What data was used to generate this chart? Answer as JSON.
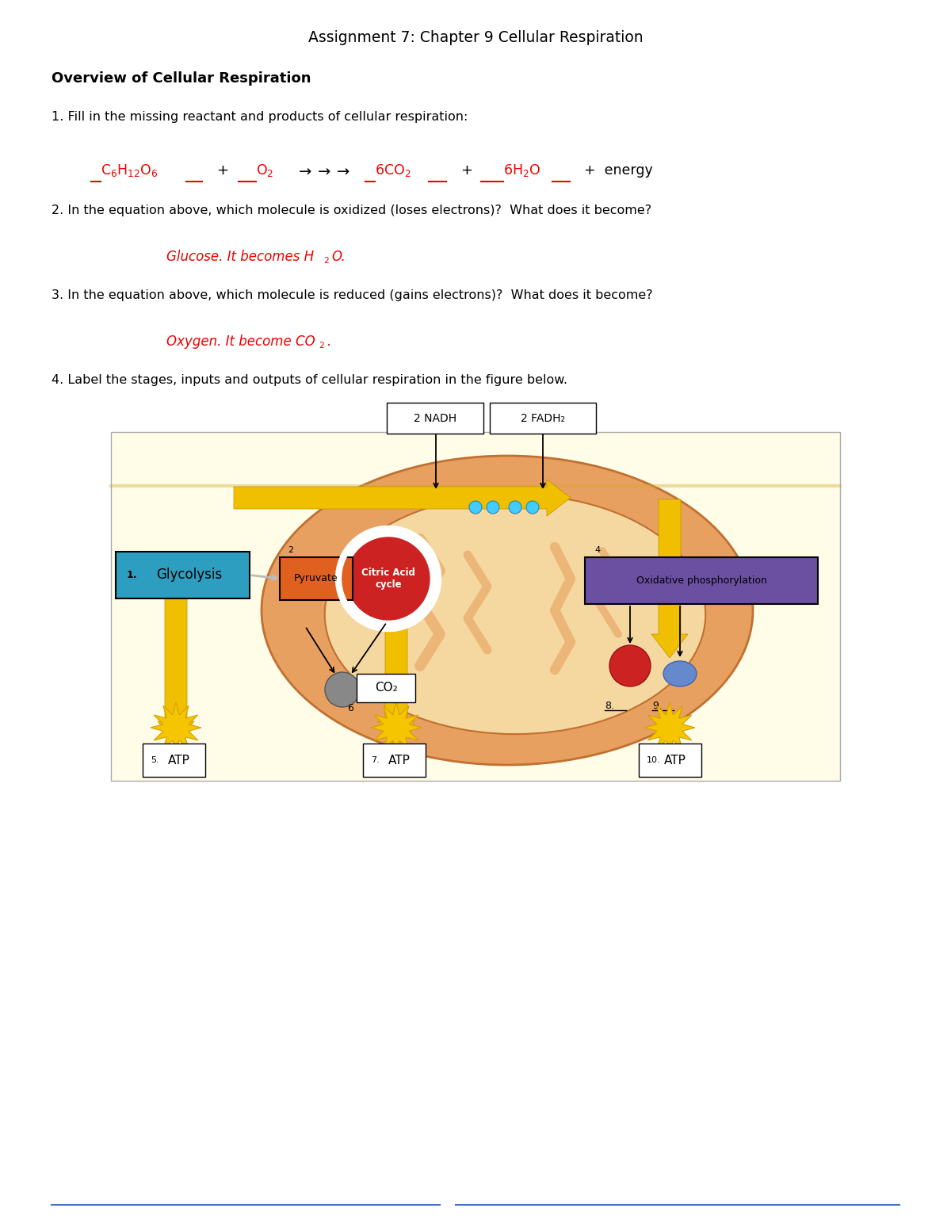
{
  "title": "Assignment 7: Chapter 9 Cellular Respiration",
  "section": "Overview of Cellular Respiration",
  "q1": "1. Fill in the missing reactant and products of cellular respiration:",
  "q2": "2. In the equation above, which molecule is oxidized (loses electrons)?  What does it become?",
  "q3": "3. In the equation above, which molecule is reduced (gains electrons)?  What does it become?",
  "q4": "4. Label the stages, inputs and outputs of cellular respiration in the figure below.",
  "text_color": "#000000",
  "red_color": "#EE0000",
  "blue_color": "#4472C4",
  "background": "#FFFFFF",
  "footer_line_color": "#4472C4",
  "diag_bg": "#FFFCE8",
  "mito_outer_color": "#E8A060",
  "mito_inner_color": "#F5D8A0",
  "yellow_arrow": "#F0C000",
  "glycolysis_color": "#2E9EC0",
  "pyruvate_color": "#E06020",
  "oxidphos_color": "#6B4FA0",
  "citric_red": "#CC2222"
}
